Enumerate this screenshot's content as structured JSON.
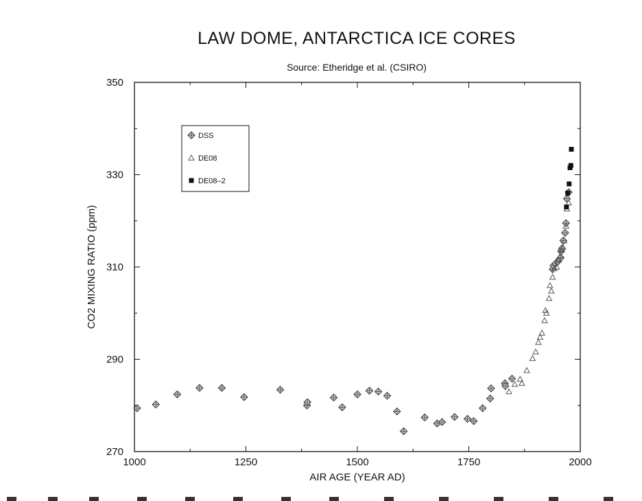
{
  "chart_data": {
    "type": "scatter",
    "title": "LAW DOME, ANTARCTICA ICE CORES",
    "subtitle": "Source:  Etheridge et al. (CSIRO)",
    "xlabel": "AIR AGE  (YEAR AD)",
    "ylabel": "CO2 MIXING RATIO  (ppm)",
    "xlim": [
      1000,
      2000
    ],
    "ylim": [
      270,
      350
    ],
    "x_ticks": [
      1000,
      1250,
      1500,
      1750,
      2000
    ],
    "y_ticks": [
      270,
      290,
      310,
      330,
      350
    ],
    "grid": false,
    "legend_position": "top-left",
    "series": [
      {
        "name": "DSS",
        "marker": "diamond",
        "color": "#444444",
        "points": [
          [
            1006,
            279.4
          ],
          [
            1048,
            280.2
          ],
          [
            1096,
            282.4
          ],
          [
            1146,
            283.8
          ],
          [
            1196,
            283.8
          ],
          [
            1246,
            281.8
          ],
          [
            1327,
            283.4
          ],
          [
            1387,
            280.0
          ],
          [
            1388,
            280.7
          ],
          [
            1447,
            281.7
          ],
          [
            1466,
            279.6
          ],
          [
            1500,
            282.4
          ],
          [
            1527,
            283.2
          ],
          [
            1547,
            283.0
          ],
          [
            1567,
            282.1
          ],
          [
            1589,
            278.7
          ],
          [
            1604,
            274.4
          ],
          [
            1651,
            277.4
          ],
          [
            1679,
            276.1
          ],
          [
            1690,
            276.4
          ],
          [
            1718,
            277.5
          ],
          [
            1747,
            277.1
          ],
          [
            1761,
            276.6
          ],
          [
            1781,
            279.4
          ],
          [
            1798,
            281.5
          ],
          [
            1800,
            283.7
          ],
          [
            1831,
            284.8
          ],
          [
            1832,
            284.2
          ],
          [
            1847,
            285.8
          ],
          [
            1938,
            309.5
          ],
          [
            1940,
            310.3
          ],
          [
            1944,
            310.7
          ],
          [
            1950,
            311.2
          ],
          [
            1953,
            311.7
          ],
          [
            1956,
            312.0
          ],
          [
            1957,
            313.4
          ],
          [
            1959,
            314.0
          ],
          [
            1962,
            315.7
          ],
          [
            1966,
            317.4
          ],
          [
            1968,
            319.5
          ],
          [
            1970,
            324.8
          ],
          [
            1974,
            326.2
          ]
        ]
      },
      {
        "name": "DE08",
        "marker": "triangle",
        "color": "#555555",
        "points": [
          [
            1840,
            283.0
          ],
          [
            1853,
            284.6
          ],
          [
            1865,
            285.7
          ],
          [
            1869,
            284.8
          ],
          [
            1880,
            287.6
          ],
          [
            1893,
            290.2
          ],
          [
            1900,
            291.6
          ],
          [
            1906,
            293.7
          ],
          [
            1910,
            294.8
          ],
          [
            1914,
            295.7
          ],
          [
            1920,
            298.4
          ],
          [
            1922,
            300.6
          ],
          [
            1924,
            300.0
          ],
          [
            1930,
            303.2
          ],
          [
            1932,
            306.0
          ],
          [
            1935,
            304.8
          ],
          [
            1938,
            307.8
          ],
          [
            1942,
            309.7
          ],
          [
            1947,
            310.0
          ],
          [
            1952,
            311.6
          ],
          [
            1955,
            312.4
          ],
          [
            1958,
            313.7
          ],
          [
            1961,
            314.3
          ],
          [
            1964,
            315.7
          ],
          [
            1968,
            318.9
          ],
          [
            1970,
            322.6
          ],
          [
            1974,
            323.9
          ]
        ]
      },
      {
        "name": "DE08–2",
        "marker": "square",
        "color": "#111111",
        "points": [
          [
            1969,
            323.0
          ],
          [
            1972,
            326.0
          ],
          [
            1975,
            328.0
          ],
          [
            1977,
            331.5
          ],
          [
            1979,
            332.0
          ],
          [
            1980,
            335.5
          ]
        ]
      }
    ]
  }
}
